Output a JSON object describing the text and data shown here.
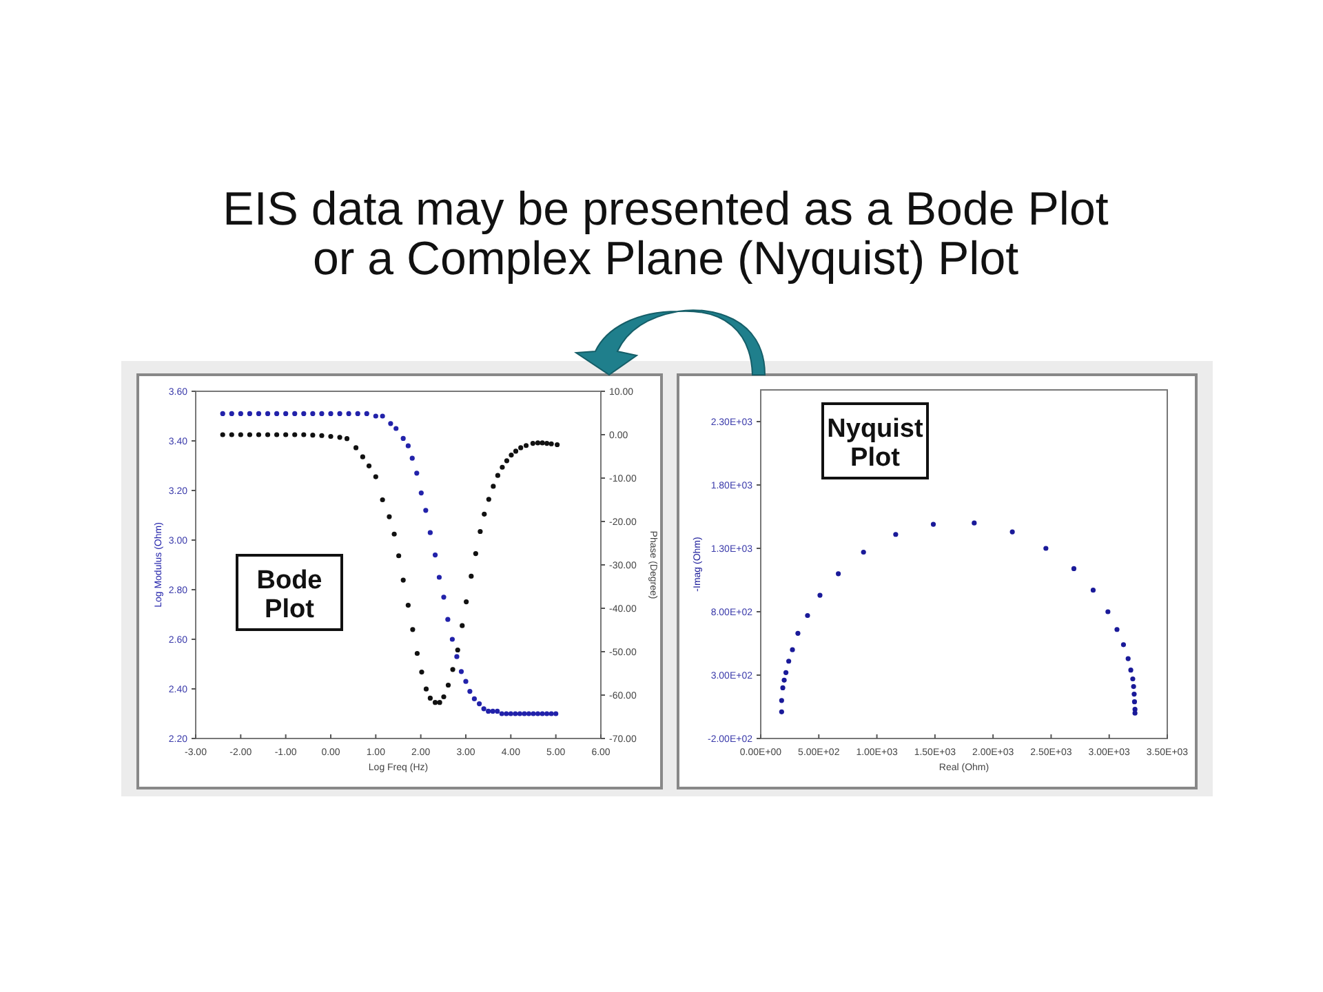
{
  "chart_data": [
    {
      "type": "scatter",
      "title": "EIS data may be presented as a Bode Plot or a Complex Plane (Nyquist) Plot",
      "xlabel": "Log Freq (Hz)",
      "ylabel": "Log Modulus (Ohm)",
      "y2label": "Phase (Degree)",
      "marker": "circle",
      "grid": false,
      "xlim": [
        -3,
        6
      ],
      "xticks": [
        {
          "value": -3,
          "label": "-3.00"
        },
        {
          "value": -2,
          "label": "-2.00"
        },
        {
          "value": -1,
          "label": "-1.00"
        },
        {
          "value": 0,
          "label": "0.00"
        },
        {
          "value": 1,
          "label": "1.00"
        },
        {
          "value": 2,
          "label": "2.00"
        },
        {
          "value": 3,
          "label": "3.00"
        },
        {
          "value": 4,
          "label": "4.00"
        },
        {
          "value": 5,
          "label": "5.00"
        },
        {
          "value": 6,
          "label": "6.00"
        }
      ],
      "ylim": [
        2.2,
        3.6
      ],
      "yticks": [
        {
          "value": 2.2,
          "label": "2.20"
        },
        {
          "value": 2.4,
          "label": "2.40"
        },
        {
          "value": 2.6,
          "label": "2.60"
        },
        {
          "value": 2.8,
          "label": "2.80"
        },
        {
          "value": 3.0,
          "label": "3.00"
        },
        {
          "value": 3.2,
          "label": "3.20"
        },
        {
          "value": 3.4,
          "label": "3.40"
        },
        {
          "value": 3.6,
          "label": "3.60"
        }
      ],
      "y2lim": [
        -70,
        10
      ],
      "y2ticks": [
        {
          "value": -70,
          "label": "-70.00"
        },
        {
          "value": -60,
          "label": "-60.00"
        },
        {
          "value": -50,
          "label": "-50.00"
        },
        {
          "value": -40,
          "label": "-40.00"
        },
        {
          "value": -30,
          "label": "-30.00"
        },
        {
          "value": -20,
          "label": "-20.00"
        },
        {
          "value": -10,
          "label": "-10.00"
        },
        {
          "value": 0,
          "label": "0.00"
        },
        {
          "value": 10,
          "label": "10.00"
        }
      ],
      "annotations": [
        "Bode Plot"
      ],
      "series": [
        {
          "color": "#2222aa",
          "x": [
            -2.4,
            -2.2,
            -2.0,
            -1.8,
            -1.6,
            -1.4,
            -1.2,
            -1.0,
            -0.8,
            -0.6,
            -0.4,
            -0.2,
            0.0,
            0.2,
            0.4,
            0.6,
            0.8,
            1.0,
            1.15,
            1.33,
            1.45,
            1.61,
            1.72,
            1.81,
            1.91,
            2.01,
            2.11,
            2.21,
            2.32,
            2.41,
            2.51,
            2.6,
            2.7,
            2.8,
            2.9,
            3.0,
            3.09,
            3.19,
            3.3,
            3.4,
            3.5,
            3.6,
            3.7,
            3.8,
            3.9,
            4.0,
            4.1,
            4.2,
            4.3,
            4.4,
            4.5,
            4.6,
            4.7,
            4.8,
            4.9,
            5.0
          ],
          "values": [
            3.51,
            3.51,
            3.51,
            3.51,
            3.51,
            3.51,
            3.51,
            3.51,
            3.51,
            3.51,
            3.51,
            3.51,
            3.51,
            3.51,
            3.51,
            3.51,
            3.51,
            3.5,
            3.5,
            3.47,
            3.45,
            3.41,
            3.38,
            3.33,
            3.27,
            3.19,
            3.12,
            3.03,
            2.94,
            2.85,
            2.77,
            2.68,
            2.6,
            2.53,
            2.47,
            2.43,
            2.39,
            2.36,
            2.34,
            2.32,
            2.31,
            2.31,
            2.31,
            2.3,
            2.3,
            2.3,
            2.3,
            2.3,
            2.3,
            2.3,
            2.3,
            2.3,
            2.3,
            2.3,
            2.3,
            2.3
          ]
        },
        {
          "color": "#111111",
          "axis": "y2",
          "x": [
            -2.4,
            -2.2,
            -2.0,
            -1.8,
            -1.6,
            -1.4,
            -1.2,
            -1.0,
            -0.8,
            -0.6,
            -0.4,
            -0.2,
            0.0,
            0.2,
            0.36,
            0.56,
            0.71,
            0.85,
            1.0,
            1.15,
            1.3,
            1.41,
            1.51,
            1.61,
            1.72,
            1.82,
            1.92,
            2.02,
            2.12,
            2.21,
            2.32,
            2.42,
            2.51,
            2.61,
            2.71,
            2.82,
            2.92,
            3.01,
            3.12,
            3.22,
            3.32,
            3.41,
            3.51,
            3.61,
            3.71,
            3.81,
            3.91,
            4.01,
            4.11,
            4.22,
            4.34,
            4.49,
            4.6,
            4.7,
            4.8,
            4.9,
            5.03
          ],
          "values": [
            0,
            0,
            0,
            0,
            0,
            0,
            0,
            0,
            0,
            0,
            -0.1,
            -0.2,
            -0.4,
            -0.6,
            -0.9,
            -3,
            -5.1,
            -7.2,
            -9.7,
            -15,
            -18.9,
            -22.9,
            -27.9,
            -33.5,
            -39.3,
            -44.9,
            -50.4,
            -54.7,
            -58.6,
            -60.7,
            -61.7,
            -61.7,
            -60.4,
            -57.7,
            -54.1,
            -49.6,
            -44,
            -38.5,
            -32.6,
            -27.4,
            -22.3,
            -18.3,
            -14.9,
            -11.9,
            -9.4,
            -7.5,
            -6,
            -4.7,
            -3.8,
            -3,
            -2.5,
            -2,
            -1.9,
            -1.9,
            -2,
            -2.1,
            -2.3
          ]
        }
      ]
    },
    {
      "type": "scatter",
      "xlabel": "Real (Ohm)",
      "ylabel": "-Imag (Ohm)",
      "marker": "circle",
      "grid": false,
      "xlim": [
        0,
        3500
      ],
      "xticks": [
        {
          "value": 0,
          "label": "0.00E+00"
        },
        {
          "value": 500,
          "label": "5.00E+02"
        },
        {
          "value": 1000,
          "label": "1.00E+03"
        },
        {
          "value": 1500,
          "label": "1.50E+03"
        },
        {
          "value": 2000,
          "label": "2.00E+03"
        },
        {
          "value": 2500,
          "label": "2.50E+03"
        },
        {
          "value": 3000,
          "label": "3.00E+03"
        },
        {
          "value": 3500,
          "label": "3.50E+03"
        }
      ],
      "ylim": [
        -200,
        2550
      ],
      "yticks": [
        {
          "value": -200,
          "label": "-2.00E+02"
        },
        {
          "value": 300,
          "label": "3.00E+02"
        },
        {
          "value": 800,
          "label": "8.00E+02"
        },
        {
          "value": 1300,
          "label": "1.30E+03"
        },
        {
          "value": 1800,
          "label": "1.80E+03"
        },
        {
          "value": 2300,
          "label": "2.30E+03"
        }
      ],
      "annotations": [
        "Nyquist Plot"
      ],
      "series": [
        {
          "color": "#1a1a99",
          "x": [
            180,
            180,
            190,
            202,
            217,
            241,
            273,
            320,
            403,
            510,
            668,
            885,
            1162,
            1486,
            1838,
            2166,
            2455,
            2696,
            2862,
            2989,
            3067,
            3123,
            3163,
            3186,
            3203,
            3210,
            3215,
            3218,
            3222,
            3222
          ],
          "values": [
            10,
            100,
            200,
            260,
            320,
            410,
            500,
            630,
            770,
            930,
            1100,
            1270,
            1410,
            1490,
            1500,
            1430,
            1300,
            1140,
            970,
            800,
            660,
            540,
            430,
            340,
            270,
            210,
            150,
            90,
            30,
            0
          ]
        }
      ]
    }
  ]
}
